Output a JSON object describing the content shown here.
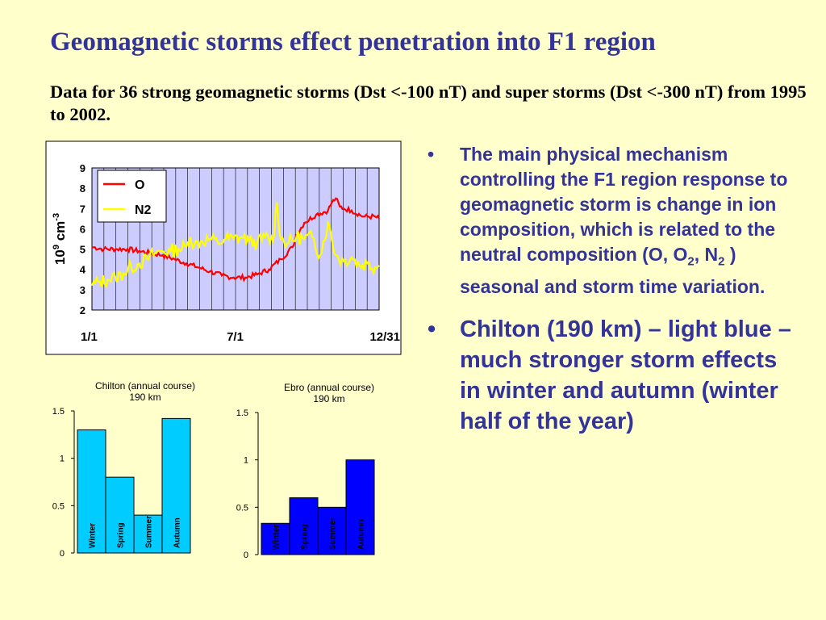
{
  "slide": {
    "title": "Geomagnetic storms effect penetration into F1 region",
    "subtitle": "Data for 36 strong geomagnetic storms (Dst <-100 nT) and super storms (Dst <-300 nT) from 1995 to 2002."
  },
  "bullets": {
    "marker": "•",
    "b1": {
      "text_a": "The main physical mechanism controlling the F1 region response to geomagnetic storm is change in ion composition, which is related to the neutral composition (O, O",
      "sub_a": "2",
      "text_b": ", N",
      "sub_b": "2",
      "text_c": " ) seasonal and storm time variation."
    },
    "b2": {
      "text": "Chilton (190 km) – light blue – much stronger storm effects in winter and autumn (winter half of the year)"
    }
  },
  "colors": {
    "title": "#333399",
    "background": "#ffffcc",
    "plot_bg": "#ccccff",
    "o_line": "#ff0000",
    "n2_line": "#ffff00",
    "chilton_bar": "#00ccff",
    "ebro_bar": "#0000ff"
  },
  "chart_data": [
    {
      "type": "line",
      "ylabel": "10",
      "ylabel_sup": "9",
      "ylabel_unit": " cm",
      "ylabel_unit_sup": "-3",
      "ylim": [
        2,
        9
      ],
      "yticks": [
        "2",
        "3",
        "4",
        "5",
        "6",
        "7",
        "8",
        "9"
      ],
      "xlim": [
        0,
        365
      ],
      "xtick_values": [
        0,
        182,
        365
      ],
      "xtick_labels": [
        "1/1",
        "7/1",
        "12/31"
      ],
      "grid": true,
      "legend": "top-left",
      "series": [
        {
          "name": "O",
          "color": "#ff0000",
          "x": [
            0,
            15,
            30,
            45,
            60,
            75,
            90,
            105,
            120,
            135,
            150,
            165,
            180,
            195,
            210,
            225,
            240,
            255,
            260,
            270,
            285,
            300,
            305,
            310,
            315,
            320,
            330,
            345,
            360,
            365
          ],
          "y": [
            5.1,
            5.0,
            5.0,
            5.0,
            4.9,
            4.8,
            4.7,
            4.5,
            4.3,
            4.1,
            3.9,
            3.7,
            3.6,
            3.6,
            3.75,
            4.0,
            4.5,
            5.1,
            5.7,
            6.3,
            6.7,
            6.9,
            7.3,
            7.5,
            7.1,
            7.0,
            6.9,
            6.6,
            6.6,
            6.5
          ]
        },
        {
          "name": "N2",
          "color": "#ffff00",
          "x": [
            0,
            10,
            20,
            30,
            40,
            50,
            60,
            70,
            80,
            90,
            100,
            110,
            120,
            125,
            130,
            140,
            150,
            160,
            170,
            180,
            190,
            200,
            210,
            220,
            230,
            235,
            240,
            250,
            260,
            270,
            280,
            290,
            300,
            310,
            320,
            330,
            340,
            350,
            360,
            365
          ],
          "y": [
            3.2,
            3.4,
            3.5,
            3.6,
            3.8,
            4.1,
            4.3,
            4.5,
            4.8,
            4.9,
            4.9,
            5.0,
            5.1,
            5.6,
            5.2,
            5.4,
            5.5,
            5.3,
            5.5,
            5.5,
            5.6,
            5.4,
            5.3,
            5.6,
            5.4,
            7.3,
            5.5,
            5.3,
            5.6,
            5.5,
            5.6,
            4.7,
            6.3,
            4.7,
            4.4,
            4.6,
            4.2,
            4.3,
            4.1,
            4.2
          ]
        }
      ]
    },
    {
      "type": "bar",
      "title": "Chilton (annual course)",
      "subtitle": "190 km",
      "categories": [
        "Winter",
        "Spring",
        "Summer",
        "Autumn"
      ],
      "values": [
        1.3,
        0.8,
        0.4,
        1.42
      ],
      "ylim": [
        0,
        1.5
      ],
      "yticks": [
        "0",
        "0.5",
        "1",
        "1.5"
      ],
      "color": "#00ccff"
    },
    {
      "type": "bar",
      "title": "Ebro (annual course)",
      "subtitle": "190 km",
      "categories": [
        "Winter",
        "Spring",
        "Summer",
        "Autumn"
      ],
      "values": [
        0.33,
        0.6,
        0.5,
        1.0
      ],
      "ylim": [
        0,
        1.5
      ],
      "yticks": [
        "0",
        "0.5",
        "1",
        "1.5"
      ],
      "color": "#0000ff"
    }
  ]
}
